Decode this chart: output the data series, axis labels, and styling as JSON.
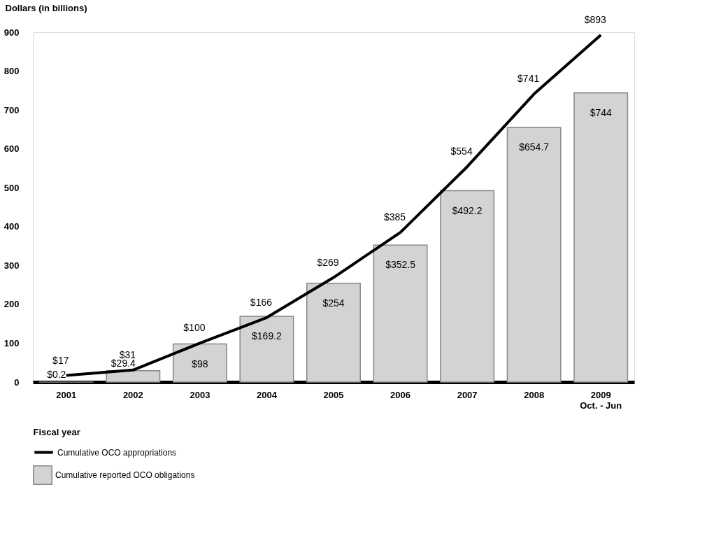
{
  "chart_data": {
    "type": "bar",
    "ylabel": "Dollars (in billions)",
    "xlabel": "Fiscal year",
    "categories": [
      "2001",
      "2002",
      "2003",
      "2004",
      "2005",
      "2006",
      "2007",
      "2008",
      "2009\nOct. - Jun"
    ],
    "series": [
      {
        "name": "Cumulative OCO appropriations",
        "type": "line",
        "color": "#000000",
        "values": [
          17,
          31,
          100,
          166,
          269,
          385,
          554,
          741,
          893
        ],
        "value_labels": [
          "$17",
          "$31",
          "$100",
          "$166",
          "$269",
          "$385",
          "$554",
          "$741",
          "$893"
        ]
      },
      {
        "name": "Cumulative reported OCO obligations",
        "color": "#d3d3d3",
        "values": [
          0.2,
          29.4,
          98,
          169.2,
          254,
          352.5,
          492.2,
          654.7,
          744
        ],
        "value_labels": [
          "$0.2",
          "$29.4",
          "$98",
          "$169.2",
          "$254",
          "$352.5",
          "$492.2",
          "$654.7",
          "$744"
        ]
      }
    ],
    "ylim": [
      0,
      900
    ],
    "yticks": [
      0,
      100,
      200,
      300,
      400,
      500,
      600,
      700,
      800,
      900
    ],
    "grid": false,
    "legend": "bottom left",
    "marker": "none",
    "line_style": "solid"
  }
}
